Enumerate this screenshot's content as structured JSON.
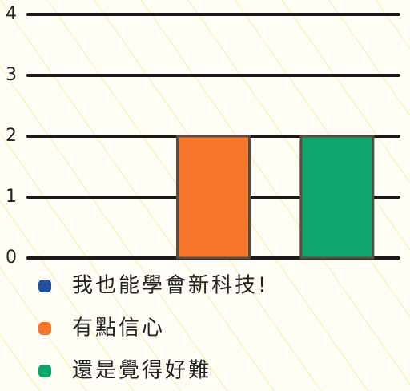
{
  "chart_data": {
    "type": "bar",
    "series": [
      {
        "name": "我也能學會新科技!",
        "color": "#1f4fa0",
        "values": [
          0
        ]
      },
      {
        "name": "有點信心",
        "color": "#f7782a",
        "values": [
          2
        ]
      },
      {
        "name": "還是覺得好難",
        "color": "#0ea66d",
        "values": [
          2
        ]
      }
    ],
    "ylim": [
      0,
      4
    ],
    "yticks": [
      0,
      1,
      2,
      3,
      4
    ],
    "grid": true,
    "legend": "bottom"
  }
}
